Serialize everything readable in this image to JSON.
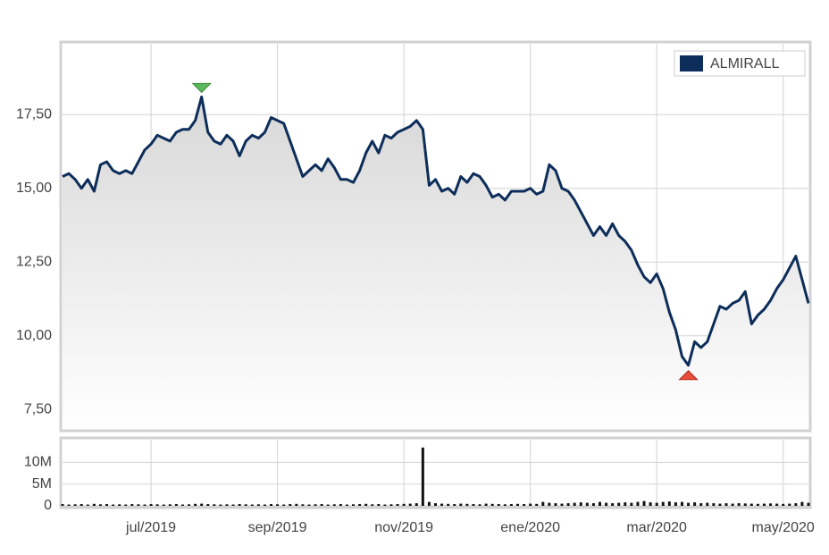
{
  "chart_data": [
    {
      "type": "line",
      "categories": [
        null,
        null,
        null,
        null,
        null,
        null,
        null,
        null,
        null,
        null,
        null,
        null,
        null,
        null,
        "jul/2019",
        null,
        null,
        null,
        null,
        null,
        null,
        null,
        null,
        null,
        null,
        null,
        null,
        null,
        null,
        null,
        null,
        null,
        null,
        null,
        "sep/2019",
        null,
        null,
        null,
        null,
        null,
        null,
        null,
        null,
        null,
        null,
        null,
        null,
        null,
        null,
        null,
        null,
        null,
        null,
        null,
        "nov/2019",
        null,
        null,
        null,
        null,
        null,
        null,
        null,
        null,
        null,
        null,
        null,
        null,
        null,
        null,
        null,
        null,
        null,
        null,
        null,
        "ene/2020",
        null,
        null,
        null,
        null,
        null,
        null,
        null,
        null,
        null,
        null,
        null,
        null,
        null,
        null,
        null,
        null,
        null,
        null,
        null,
        "mar/2020",
        null,
        null,
        null,
        null,
        null,
        null,
        null,
        null,
        null,
        null,
        null,
        null,
        null,
        null,
        null,
        null,
        null,
        null,
        null,
        "may/2020",
        null,
        null,
        null,
        null
      ],
      "series": [
        {
          "name": "ALMIRALL",
          "color": "#0d2d5a",
          "values": [
            15.4,
            15.5,
            15.3,
            15.0,
            15.3,
            14.9,
            15.8,
            15.9,
            15.6,
            15.5,
            15.6,
            15.5,
            15.9,
            16.3,
            16.5,
            16.8,
            16.7,
            16.6,
            16.9,
            17.0,
            17.0,
            17.3,
            18.1,
            16.9,
            16.6,
            16.5,
            16.8,
            16.6,
            16.1,
            16.6,
            16.8,
            16.7,
            16.9,
            17.4,
            17.3,
            17.2,
            16.6,
            16.0,
            15.4,
            15.6,
            15.8,
            15.6,
            16.0,
            15.7,
            15.3,
            15.3,
            15.2,
            15.6,
            16.2,
            16.6,
            16.2,
            16.8,
            16.7,
            16.9,
            17.0,
            17.1,
            17.3,
            17.0,
            15.1,
            15.3,
            14.9,
            15.0,
            14.8,
            15.4,
            15.2,
            15.5,
            15.4,
            15.1,
            14.7,
            14.8,
            14.6,
            14.9,
            14.9,
            14.9,
            15.0,
            14.8,
            14.9,
            15.8,
            15.6,
            15.0,
            14.9,
            14.6,
            14.2,
            13.8,
            13.4,
            13.7,
            13.4,
            13.8,
            13.4,
            13.2,
            12.9,
            12.4,
            12.0,
            11.8,
            12.1,
            11.6,
            10.8,
            10.2,
            9.3,
            9.0,
            9.8,
            9.6,
            9.8,
            10.4,
            11.0,
            10.9,
            11.1,
            11.2,
            11.5,
            10.4,
            10.7,
            10.9,
            11.2,
            11.6,
            11.9,
            12.3,
            12.7,
            11.9,
            11.1
          ]
        }
      ],
      "ylim": [
        6.84,
        19.9
      ],
      "yticks": [
        {
          "value": 7.5,
          "label": "7,50"
        },
        {
          "value": 10,
          "label": "10,00"
        },
        {
          "value": 12.5,
          "label": "12,50"
        },
        {
          "value": 15,
          "label": "15,00"
        },
        {
          "value": 17.5,
          "label": "17,50"
        }
      ],
      "grid": true,
      "legend": "upper right"
    },
    {
      "type": "bar",
      "color": "#111111",
      "values": [
        400000,
        300000,
        350000,
        400000,
        300000,
        450000,
        350000,
        400000,
        300000,
        350000,
        300000,
        400000,
        350000,
        300000,
        400000,
        350000,
        300000,
        350000,
        400000,
        300000,
        350000,
        450000,
        500000,
        400000,
        350000,
        300000,
        350000,
        300000,
        400000,
        350000,
        300000,
        350000,
        300000,
        400000,
        350000,
        300000,
        400000,
        450000,
        350000,
        300000,
        350000,
        400000,
        300000,
        350000,
        400000,
        300000,
        350000,
        400000,
        450000,
        350000,
        400000,
        300000,
        350000,
        400000,
        450000,
        500000,
        600000,
        13400000,
        900000,
        600000,
        500000,
        450000,
        400000,
        500000,
        450000,
        400000,
        350000,
        500000,
        450000,
        400000,
        350000,
        400000,
        450000,
        400000,
        500000,
        450000,
        900000,
        700000,
        600000,
        500000,
        600000,
        700000,
        800000,
        700000,
        600000,
        900000,
        700000,
        600000,
        700000,
        800000,
        700000,
        900000,
        1100000,
        800000,
        700000,
        900000,
        1000000,
        800000,
        900000,
        700000,
        800000,
        600000,
        700000,
        600000,
        500000,
        600000,
        500000,
        600000,
        550000,
        500000,
        450000,
        500000,
        550000,
        500000,
        450000,
        500000,
        600000,
        900000,
        700000
      ],
      "ylim": [
        0,
        15200000
      ],
      "yticks": [
        0,
        {
          "value": 5000000,
          "label": "5M"
        },
        {
          "value": 10000000,
          "label": "10M"
        }
      ],
      "grid": true
    }
  ]
}
